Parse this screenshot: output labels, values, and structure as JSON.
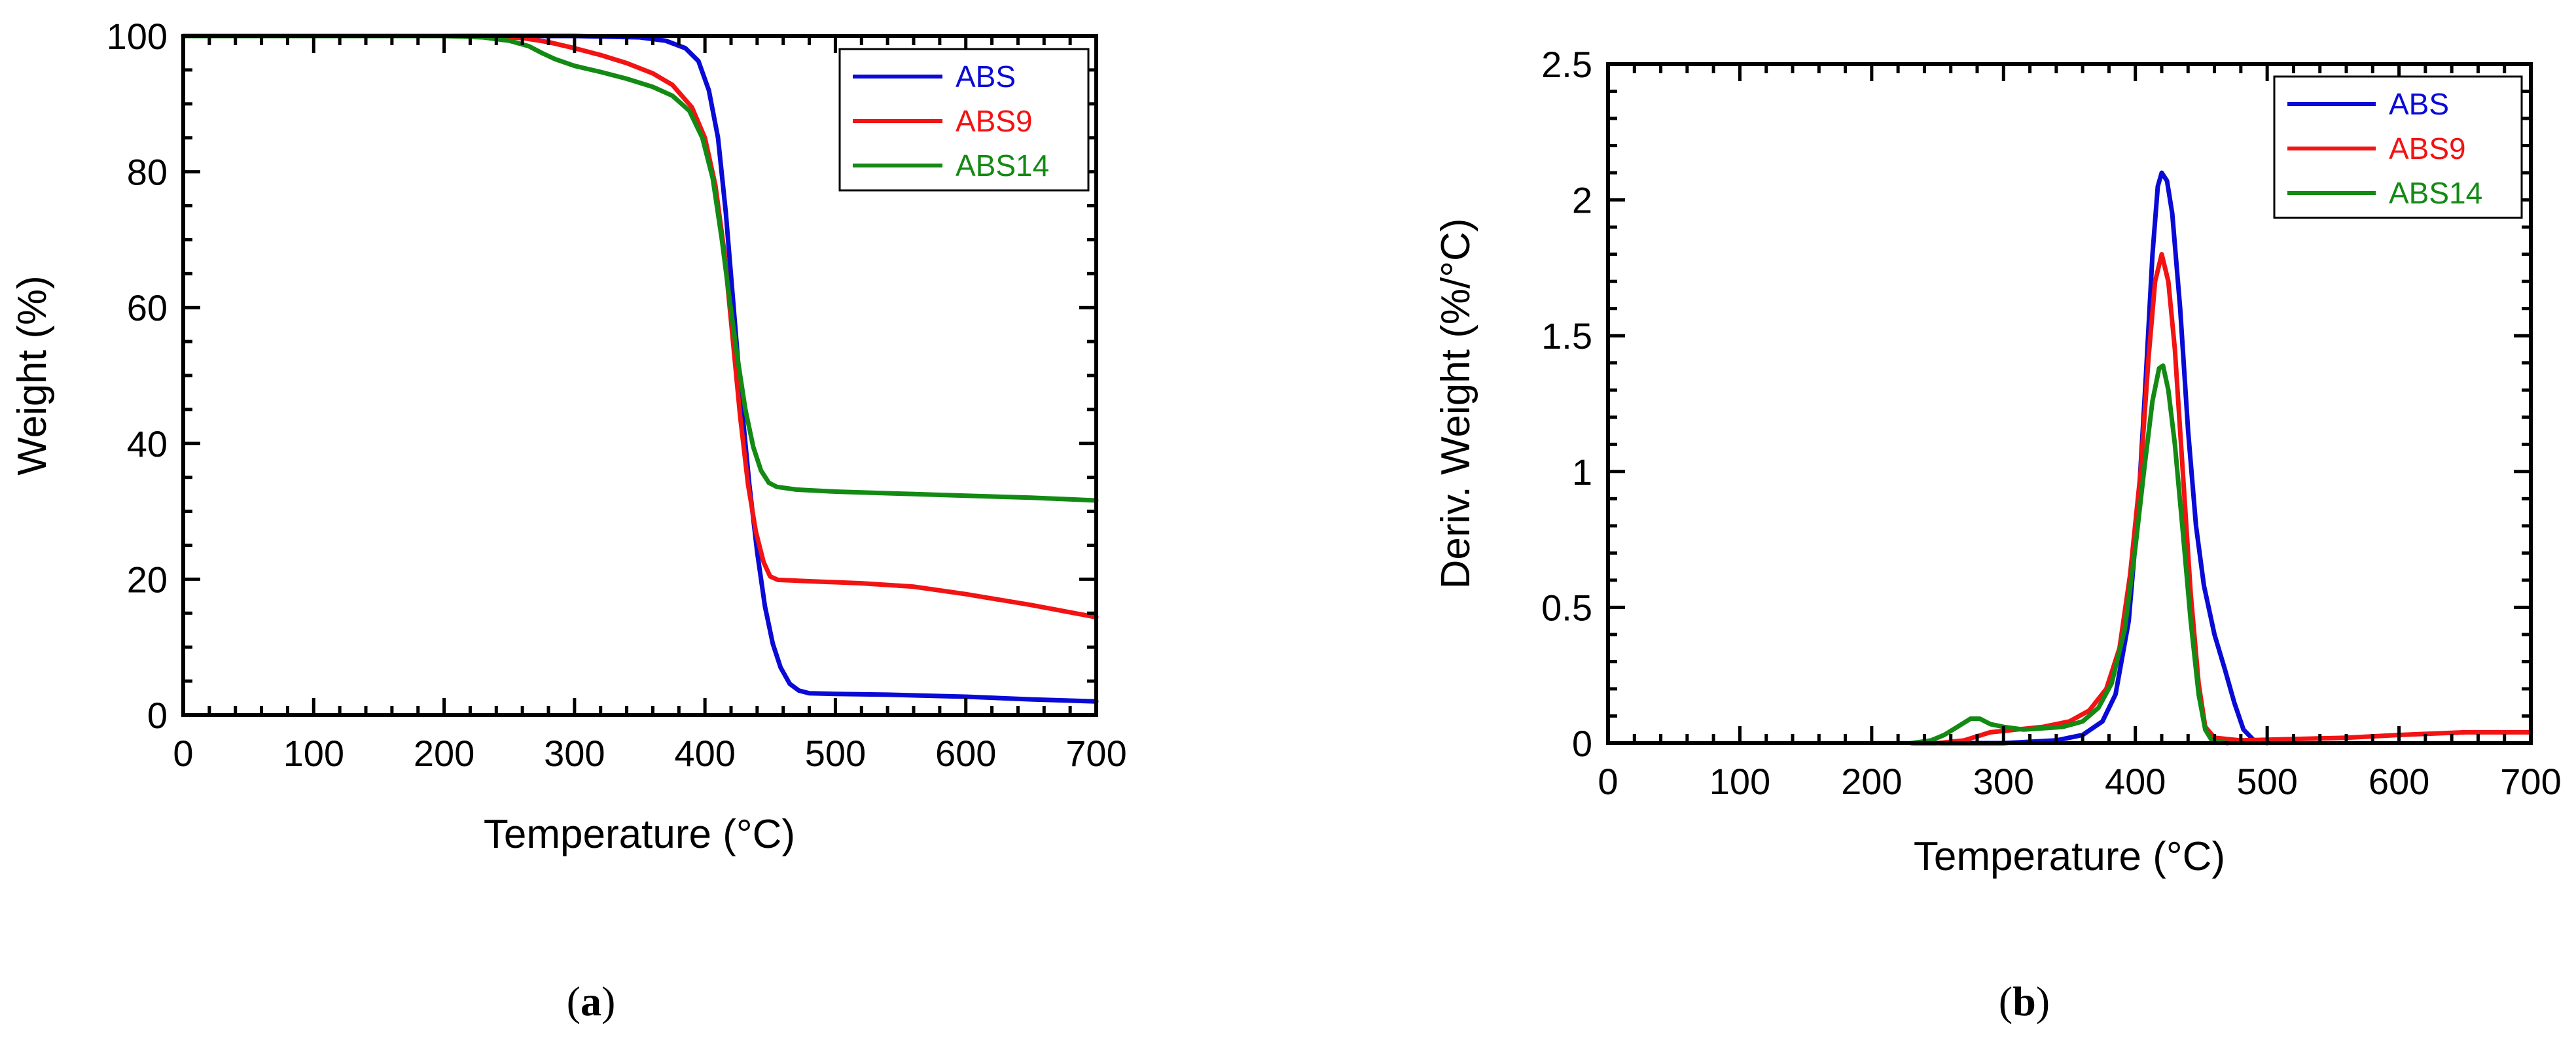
{
  "colors": {
    "ABS": "#0a0ad6",
    "ABS9": "#f21313",
    "ABS14": "#138a13"
  },
  "panel_labels": [
    {
      "open": "(",
      "letter": "a",
      "close": ")"
    },
    {
      "open": "(",
      "letter": "b",
      "close": ")"
    }
  ],
  "chart_data": [
    {
      "type": "line",
      "id": "a",
      "title": "",
      "xlabel": "Temperature (°C)",
      "ylabel": "Weight (%)",
      "xlim": [
        0,
        700
      ],
      "ylim": [
        0,
        100
      ],
      "xticks": [
        0,
        100,
        200,
        300,
        400,
        500,
        600,
        700
      ],
      "xtick_labels": [
        "0",
        "100",
        "200",
        "300",
        "400",
        "500",
        "600",
        "700"
      ],
      "yticks": [
        0,
        20,
        40,
        60,
        80,
        100
      ],
      "ytick_labels": [
        "0",
        "20",
        "40",
        "60",
        "80",
        "100"
      ],
      "x_minor_step": 20,
      "y_minor_step": 5,
      "legend_position": "top-right",
      "series": [
        {
          "name": "ABS",
          "color": "#0a0ad6",
          "points": [
            [
              0,
              100
            ],
            [
              200,
              100
            ],
            [
              300,
              100
            ],
            [
              350,
              99.8
            ],
            [
              370,
              99.3
            ],
            [
              385,
              98.2
            ],
            [
              395,
              96.3
            ],
            [
              403,
              92
            ],
            [
              410,
              85
            ],
            [
              416,
              74
            ],
            [
              422,
              60
            ],
            [
              428,
              46
            ],
            [
              434,
              34
            ],
            [
              440,
              24
            ],
            [
              446,
              16
            ],
            [
              452,
              10.5
            ],
            [
              458,
              7
            ],
            [
              465,
              4.6
            ],
            [
              472,
              3.6
            ],
            [
              480,
              3.2
            ],
            [
              500,
              3.1
            ],
            [
              540,
              3.0
            ],
            [
              600,
              2.7
            ],
            [
              650,
              2.3
            ],
            [
              700,
              2.0
            ]
          ]
        },
        {
          "name": "ABS9",
          "color": "#f21313",
          "points": [
            [
              0,
              100
            ],
            [
              200,
              100
            ],
            [
              240,
              99.9
            ],
            [
              260,
              99.7
            ],
            [
              280,
              99.1
            ],
            [
              300,
              98.2
            ],
            [
              320,
              97.2
            ],
            [
              340,
              96
            ],
            [
              360,
              94.5
            ],
            [
              375,
              92.8
            ],
            [
              390,
              89.5
            ],
            [
              400,
              85
            ],
            [
              408,
              78
            ],
            [
              415,
              68
            ],
            [
              421,
              56
            ],
            [
              427,
              44
            ],
            [
              433,
              34
            ],
            [
              439,
              27
            ],
            [
              445,
              22.5
            ],
            [
              450,
              20.4
            ],
            [
              456,
              19.9
            ],
            [
              480,
              19.7
            ],
            [
              520,
              19.4
            ],
            [
              560,
              18.9
            ],
            [
              600,
              17.8
            ],
            [
              650,
              16.2
            ],
            [
              700,
              14.4
            ]
          ]
        },
        {
          "name": "ABS14",
          "color": "#138a13",
          "points": [
            [
              0,
              100
            ],
            [
              200,
              100
            ],
            [
              230,
              99.8
            ],
            [
              250,
              99.3
            ],
            [
              265,
              98.5
            ],
            [
              275,
              97.5
            ],
            [
              285,
              96.6
            ],
            [
              300,
              95.6
            ],
            [
              320,
              94.7
            ],
            [
              340,
              93.7
            ],
            [
              360,
              92.5
            ],
            [
              375,
              91.2
            ],
            [
              388,
              89
            ],
            [
              398,
              85
            ],
            [
              406,
              79
            ],
            [
              413,
              70
            ],
            [
              419,
              61
            ],
            [
              425,
              52.5
            ],
            [
              431,
              45
            ],
            [
              437,
              39.5
            ],
            [
              443,
              36
            ],
            [
              449,
              34.2
            ],
            [
              455,
              33.6
            ],
            [
              470,
              33.2
            ],
            [
              500,
              32.9
            ],
            [
              550,
              32.6
            ],
            [
              600,
              32.3
            ],
            [
              650,
              32.0
            ],
            [
              700,
              31.6
            ]
          ]
        }
      ]
    },
    {
      "type": "line",
      "id": "b",
      "title": "",
      "xlabel": "Temperature (°C)",
      "ylabel": "Deriv. Weight (%/°C)",
      "xlim": [
        0,
        700
      ],
      "ylim": [
        0,
        2.5
      ],
      "xticks": [
        0,
        100,
        200,
        300,
        400,
        500,
        600,
        700
      ],
      "xtick_labels": [
        "0",
        "100",
        "200",
        "300",
        "400",
        "500",
        "600",
        "700"
      ],
      "yticks": [
        0,
        0.5,
        1,
        1.5,
        2,
        2.5
      ],
      "ytick_labels": [
        "0",
        "0.5",
        "1",
        "1.5",
        "2",
        "2.5"
      ],
      "x_minor_step": 20,
      "y_minor_step": 0.1,
      "legend_position": "top-right",
      "series": [
        {
          "name": "ABS",
          "color": "#0a0ad6",
          "points": [
            [
              230,
              0
            ],
            [
              300,
              0
            ],
            [
              340,
              0.01
            ],
            [
              360,
              0.03
            ],
            [
              375,
              0.08
            ],
            [
              385,
              0.18
            ],
            [
              395,
              0.45
            ],
            [
              402,
              0.85
            ],
            [
              408,
              1.35
            ],
            [
              413,
              1.8
            ],
            [
              417,
              2.05
            ],
            [
              420,
              2.1
            ],
            [
              424,
              2.07
            ],
            [
              428,
              1.95
            ],
            [
              434,
              1.6
            ],
            [
              440,
              1.15
            ],
            [
              446,
              0.8
            ],
            [
              452,
              0.58
            ],
            [
              460,
              0.4
            ],
            [
              468,
              0.27
            ],
            [
              475,
              0.15
            ],
            [
              482,
              0.05
            ],
            [
              490,
              0.01
            ],
            [
              500,
              0
            ]
          ]
        },
        {
          "name": "ABS9",
          "color": "#f21313",
          "points": [
            [
              250,
              0
            ],
            [
              270,
              0.01
            ],
            [
              290,
              0.04
            ],
            [
              310,
              0.05
            ],
            [
              330,
              0.06
            ],
            [
              350,
              0.08
            ],
            [
              365,
              0.12
            ],
            [
              378,
              0.2
            ],
            [
              388,
              0.35
            ],
            [
              396,
              0.62
            ],
            [
              404,
              1.0
            ],
            [
              410,
              1.42
            ],
            [
              415,
              1.7
            ],
            [
              420,
              1.8
            ],
            [
              425,
              1.7
            ],
            [
              430,
              1.45
            ],
            [
              436,
              1.0
            ],
            [
              442,
              0.55
            ],
            [
              448,
              0.22
            ],
            [
              453,
              0.06
            ],
            [
              460,
              0.02
            ],
            [
              480,
              0.01
            ],
            [
              520,
              0.015
            ],
            [
              560,
              0.02
            ],
            [
              600,
              0.03
            ],
            [
              650,
              0.04
            ],
            [
              700,
              0.04
            ]
          ]
        },
        {
          "name": "ABS14",
          "color": "#138a13",
          "points": [
            [
              230,
              0
            ],
            [
              245,
              0.01
            ],
            [
              255,
              0.03
            ],
            [
              265,
              0.06
            ],
            [
              275,
              0.09
            ],
            [
              282,
              0.09
            ],
            [
              290,
              0.07
            ],
            [
              300,
              0.06
            ],
            [
              315,
              0.05
            ],
            [
              330,
              0.055
            ],
            [
              345,
              0.06
            ],
            [
              360,
              0.08
            ],
            [
              372,
              0.13
            ],
            [
              382,
              0.22
            ],
            [
              392,
              0.42
            ],
            [
              400,
              0.72
            ],
            [
              407,
              1.02
            ],
            [
              413,
              1.26
            ],
            [
              418,
              1.38
            ],
            [
              421,
              1.39
            ],
            [
              425,
              1.3
            ],
            [
              430,
              1.1
            ],
            [
              436,
              0.78
            ],
            [
              442,
              0.45
            ],
            [
              448,
              0.18
            ],
            [
              453,
              0.05
            ],
            [
              458,
              0.01
            ],
            [
              470,
              0
            ]
          ]
        }
      ]
    }
  ]
}
